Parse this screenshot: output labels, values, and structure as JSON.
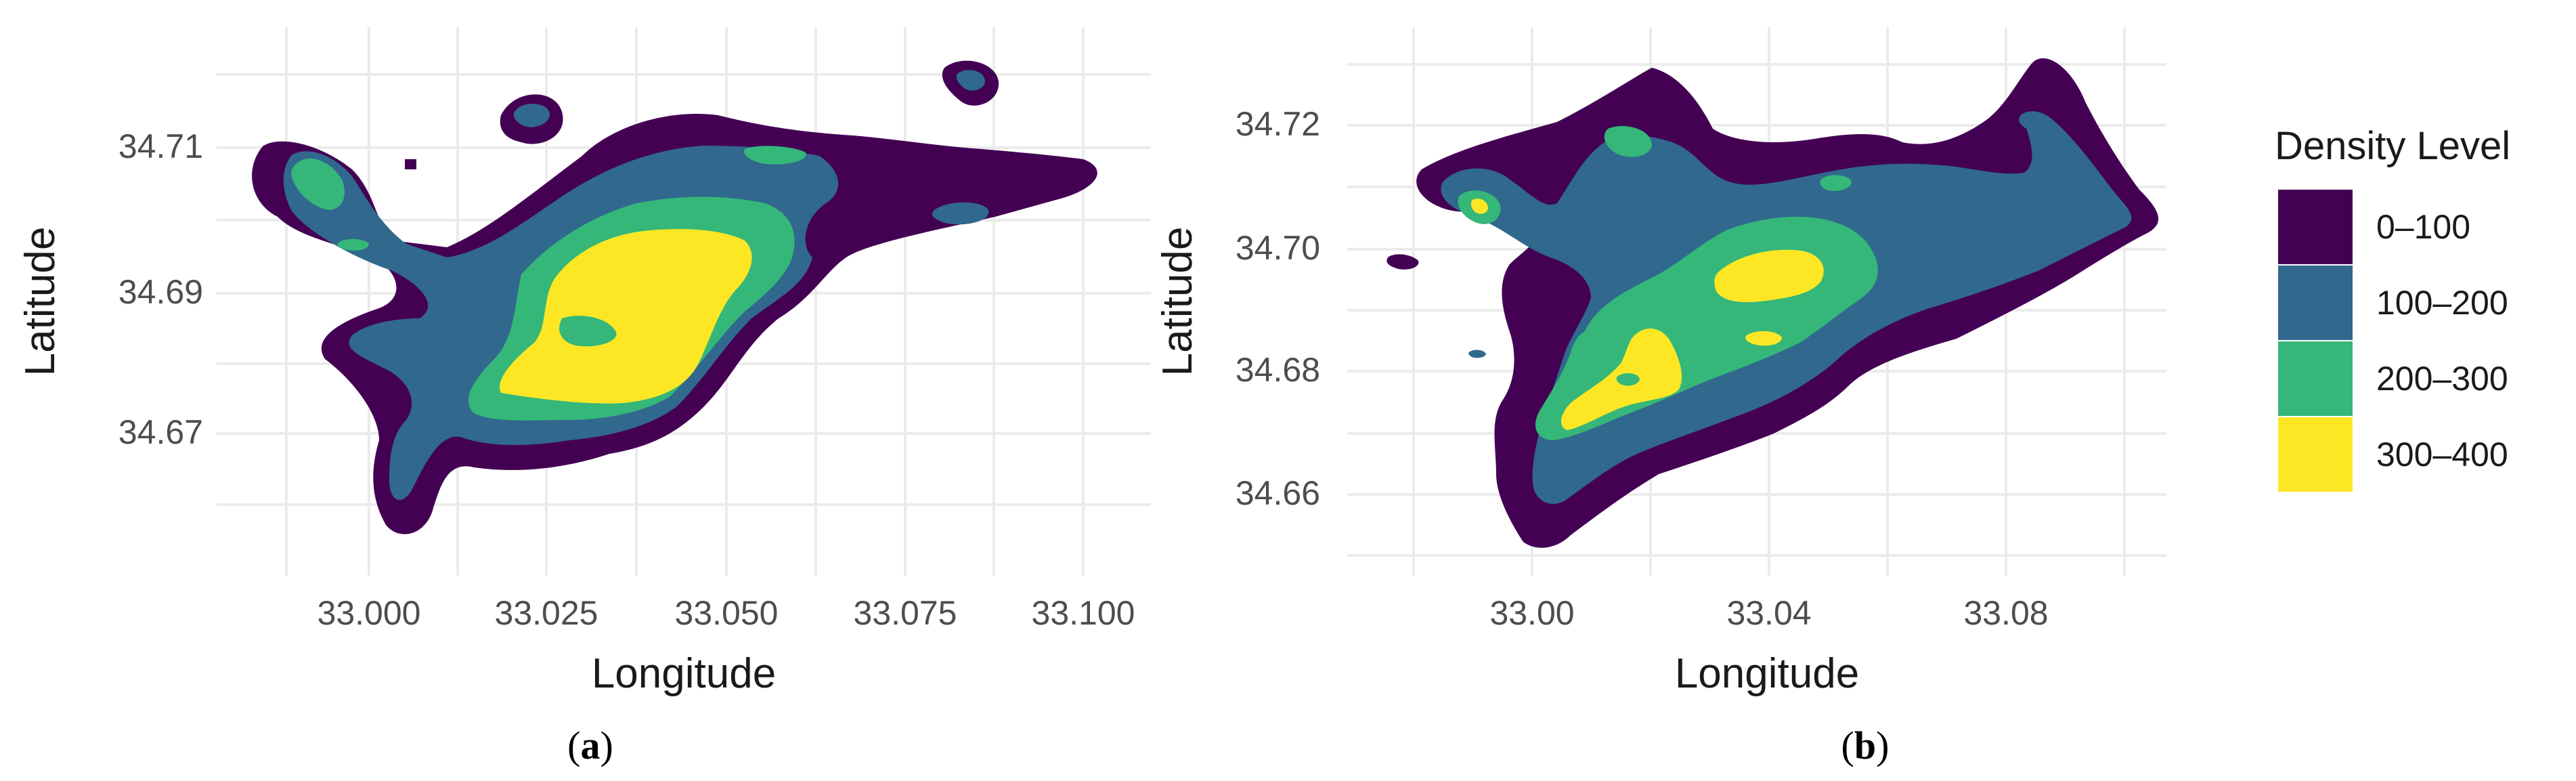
{
  "chart_data": [
    {
      "type": "heatmap",
      "panel_label": "a",
      "xlabel": "Longitude",
      "ylabel": "Latitude",
      "x_ticks": [
        "33.000",
        "33.025",
        "33.050",
        "33.075",
        "33.100"
      ],
      "y_ticks": [
        "34.67",
        "34.69",
        "34.71"
      ],
      "xlim": [
        32.985,
        33.108
      ],
      "ylim": [
        34.659,
        34.723
      ],
      "grid": true
    },
    {
      "type": "heatmap",
      "panel_label": "b",
      "xlabel": "Longitude",
      "ylabel": "Latitude",
      "x_ticks": [
        "33.00",
        "33.04",
        "33.08"
      ],
      "y_ticks": [
        "34.66",
        "34.68",
        "34.70",
        "34.72"
      ],
      "xlim": [
        32.98,
        33.106
      ],
      "ylim": [
        34.655,
        34.727
      ],
      "grid": true
    }
  ],
  "legend": {
    "title": "Density Level",
    "position": "right",
    "levels": [
      {
        "label": "0–100",
        "color": "#440154"
      },
      {
        "label": "100–200",
        "color": "#31688e"
      },
      {
        "label": "200–300",
        "color": "#35b779"
      },
      {
        "label": "300–400",
        "color": "#fde725"
      }
    ]
  }
}
